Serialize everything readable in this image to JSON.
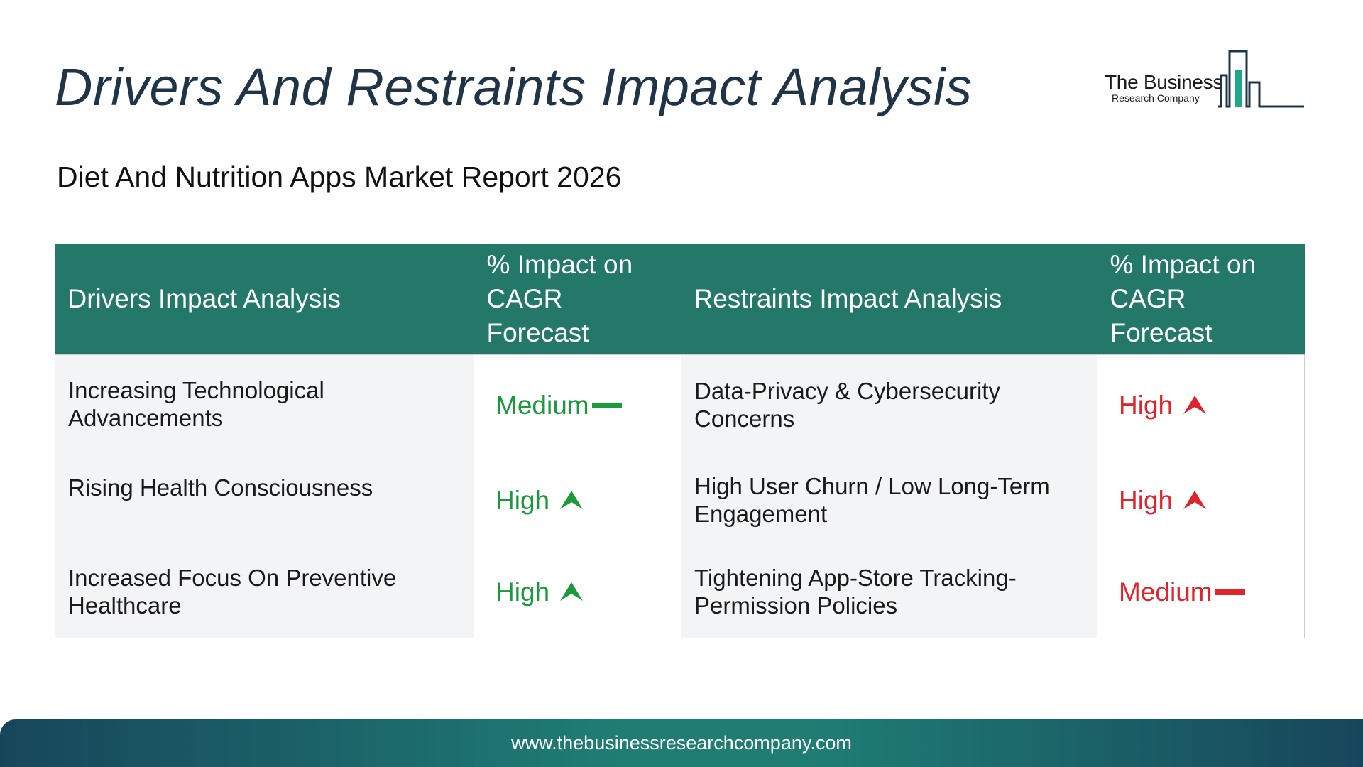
{
  "header": {
    "title": "Drivers And Restraints Impact Analysis",
    "subtitle": "Diet And Nutrition Apps Market Report 2026"
  },
  "logo": {
    "name": "The Business",
    "sub": "Research Company",
    "icon": "building-bars-icon",
    "colors": {
      "outline": "#1f3447",
      "accent": "#1fa88a"
    }
  },
  "table": {
    "headers": [
      "Drivers Impact Analysis",
      "% Impact on CAGR Forecast",
      "Restraints Impact Analysis",
      "% Impact on CAGR Forecast"
    ],
    "rows": [
      {
        "driver": "Increasing Technological Advancements",
        "driver_impact": "Medium",
        "driver_icon": "dash-icon",
        "restraint": "Data-Privacy & Cybersecurity Concerns",
        "restraint_impact": "High",
        "restraint_icon": "arrow-up-icon"
      },
      {
        "driver": "Rising Health Consciousness",
        "driver_impact": "High",
        "driver_icon": "arrow-up-icon",
        "restraint": "High User Churn / Low Long-Term Engagement",
        "restraint_impact": "High",
        "restraint_icon": "arrow-up-icon"
      },
      {
        "driver": "Increased Focus On Preventive Healthcare",
        "driver_impact": "High",
        "driver_icon": "arrow-up-icon",
        "restraint": "Tightening App-Store Tracking-Permission Policies",
        "restraint_impact": "Medium",
        "restraint_icon": "dash-icon"
      }
    ]
  },
  "colors": {
    "header_bg": "#23786a",
    "driver_impact": "#1a9a3a",
    "restraint_impact": "#e0242b",
    "title": "#1f3447"
  },
  "footer": {
    "url": "www.thebusinessresearchcompany.com"
  }
}
